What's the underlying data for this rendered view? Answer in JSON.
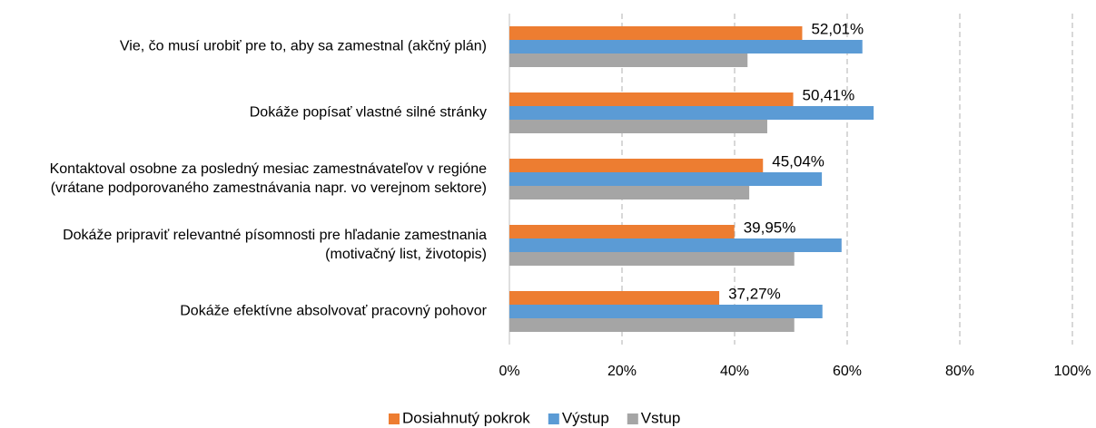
{
  "chart_data": {
    "type": "hbar",
    "categories": [
      [
        "Vie, čo musí urobiť pre to, aby sa zamestnal (akčný plán)"
      ],
      [
        "Dokáže popísať vlastné silné stránky"
      ],
      [
        "Kontaktoval osobne za posledný mesiac zamestnávateľov v regióne",
        "(vrátane podporovaného zamestnávania napr. vo verejnom sektore)"
      ],
      [
        "Dokáže pripraviť relevantné písomnosti pre hľadanie zamestnania",
        "(motivačný list, životopis)"
      ],
      [
        "Dokáže efektívne absolvovať pracovný pohovor"
      ]
    ],
    "series": [
      {
        "name": "Dosiahnutý pokrok",
        "color": "#ed7d31",
        "values": [
          52.01,
          50.41,
          45.04,
          39.95,
          37.27
        ],
        "value_labels": [
          "52,01%",
          "50,41%",
          "45,04%",
          "39,95%",
          "37,27%"
        ]
      },
      {
        "name": "Výstup",
        "color": "#5b9bd5",
        "values": [
          62.7,
          64.7,
          55.5,
          59.0,
          55.6
        ]
      },
      {
        "name": "Vstup",
        "color": "#a5a5a5",
        "values": [
          42.3,
          45.8,
          42.6,
          50.6,
          50.6
        ]
      }
    ],
    "xlim": [
      0,
      100
    ],
    "xticks": [
      {
        "value": 0,
        "label": "0%"
      },
      {
        "value": 20,
        "label": "20%"
      },
      {
        "value": 40,
        "label": "40%"
      },
      {
        "value": 60,
        "label": "60%"
      },
      {
        "value": 80,
        "label": "80%"
      },
      {
        "value": 100,
        "label": "100%"
      }
    ],
    "grid": true,
    "legend": "bottom"
  }
}
